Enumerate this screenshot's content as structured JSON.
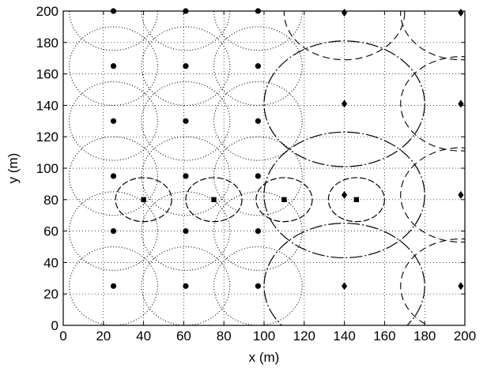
{
  "chart_data": {
    "type": "scatter",
    "title": "",
    "xlabel": "x (m)",
    "ylabel": "y (m)",
    "xlim": [
      0,
      200
    ],
    "ylim": [
      0,
      200
    ],
    "xticks": [
      0,
      20,
      40,
      60,
      80,
      100,
      120,
      140,
      160,
      180,
      200
    ],
    "yticks": [
      0,
      20,
      40,
      60,
      80,
      100,
      120,
      140,
      160,
      180,
      200
    ],
    "grid": true,
    "legend": "none",
    "series": [
      {
        "marker": "circle",
        "points": [
          [
            25,
            200
          ],
          [
            61,
            200
          ],
          [
            97,
            200
          ],
          [
            25,
            165
          ],
          [
            61,
            165
          ],
          [
            97,
            165
          ],
          [
            25,
            130
          ],
          [
            61,
            130
          ],
          [
            97,
            130
          ],
          [
            25,
            95
          ],
          [
            61,
            95
          ],
          [
            97,
            95
          ],
          [
            25,
            60
          ],
          [
            61,
            60
          ],
          [
            97,
            60
          ],
          [
            25,
            25
          ],
          [
            61,
            25
          ],
          [
            97,
            25
          ]
        ]
      },
      {
        "marker": "square",
        "points": [
          [
            40,
            80
          ],
          [
            75,
            80
          ],
          [
            110,
            80
          ],
          [
            146,
            80
          ]
        ]
      },
      {
        "marker": "diamond",
        "points": [
          [
            140,
            199
          ],
          [
            198,
            199
          ],
          [
            140,
            141
          ],
          [
            198,
            141
          ],
          [
            140,
            83
          ],
          [
            198,
            83
          ],
          [
            140,
            25
          ],
          [
            198,
            25
          ]
        ]
      }
    ],
    "circles": [
      {
        "style": "dotted",
        "cx": 25,
        "cy": 200,
        "rx": 22,
        "ry": 25
      },
      {
        "style": "dotted",
        "cx": 61,
        "cy": 200,
        "rx": 22,
        "ry": 25
      },
      {
        "style": "dotted",
        "cx": 97,
        "cy": 200,
        "rx": 22,
        "ry": 25
      },
      {
        "style": "dotted",
        "cx": 25,
        "cy": 165,
        "rx": 22,
        "ry": 25
      },
      {
        "style": "dotted",
        "cx": 61,
        "cy": 165,
        "rx": 22,
        "ry": 25
      },
      {
        "style": "dotted",
        "cx": 97,
        "cy": 165,
        "rx": 22,
        "ry": 25
      },
      {
        "style": "dotted",
        "cx": 25,
        "cy": 130,
        "rx": 22,
        "ry": 25
      },
      {
        "style": "dotted",
        "cx": 61,
        "cy": 130,
        "rx": 22,
        "ry": 25
      },
      {
        "style": "dotted",
        "cx": 97,
        "cy": 130,
        "rx": 22,
        "ry": 25
      },
      {
        "style": "dotted",
        "cx": 25,
        "cy": 95,
        "rx": 22,
        "ry": 25
      },
      {
        "style": "dotted",
        "cx": 61,
        "cy": 95,
        "rx": 22,
        "ry": 25
      },
      {
        "style": "dotted",
        "cx": 97,
        "cy": 95,
        "rx": 22,
        "ry": 25
      },
      {
        "style": "dotted",
        "cx": 25,
        "cy": 60,
        "rx": 22,
        "ry": 25
      },
      {
        "style": "dotted",
        "cx": 61,
        "cy": 60,
        "rx": 22,
        "ry": 25
      },
      {
        "style": "dotted",
        "cx": 97,
        "cy": 60,
        "rx": 22,
        "ry": 25
      },
      {
        "style": "dotted",
        "cx": 25,
        "cy": 25,
        "rx": 22,
        "ry": 25
      },
      {
        "style": "dotted",
        "cx": 61,
        "cy": 25,
        "rx": 22,
        "ry": 25
      },
      {
        "style": "dotted",
        "cx": 97,
        "cy": 25,
        "rx": 22,
        "ry": 25
      },
      {
        "style": "dashed",
        "cx": 140,
        "cy": 199,
        "rx": 30,
        "ry": 30
      },
      {
        "style": "dashed",
        "cx": 198,
        "cy": 199,
        "rx": 30,
        "ry": 30
      },
      {
        "style": "dashed",
        "cx": 198,
        "cy": 141,
        "rx": 30,
        "ry": 30
      },
      {
        "style": "dashed",
        "cx": 198,
        "cy": 83,
        "rx": 30,
        "ry": 30
      },
      {
        "style": "dashed",
        "cx": 198,
        "cy": 25,
        "rx": 30,
        "ry": 30
      },
      {
        "style": "solid-dash",
        "cx": 140,
        "cy": 141,
        "rx": 40,
        "ry": 40
      },
      {
        "style": "solid-dash",
        "cx": 140,
        "cy": 83,
        "rx": 40,
        "ry": 40
      },
      {
        "style": "solid-dash",
        "cx": 140,
        "cy": 25,
        "rx": 40,
        "ry": 40
      },
      {
        "style": "small-dash",
        "cx": 40,
        "cy": 80,
        "rx": 14,
        "ry": 14
      },
      {
        "style": "small-dash",
        "cx": 75,
        "cy": 80,
        "rx": 14,
        "ry": 14
      },
      {
        "style": "small-dash",
        "cx": 110,
        "cy": 80,
        "rx": 14,
        "ry": 14
      },
      {
        "style": "small-dash",
        "cx": 146,
        "cy": 80,
        "rx": 14,
        "ry": 14
      }
    ]
  }
}
